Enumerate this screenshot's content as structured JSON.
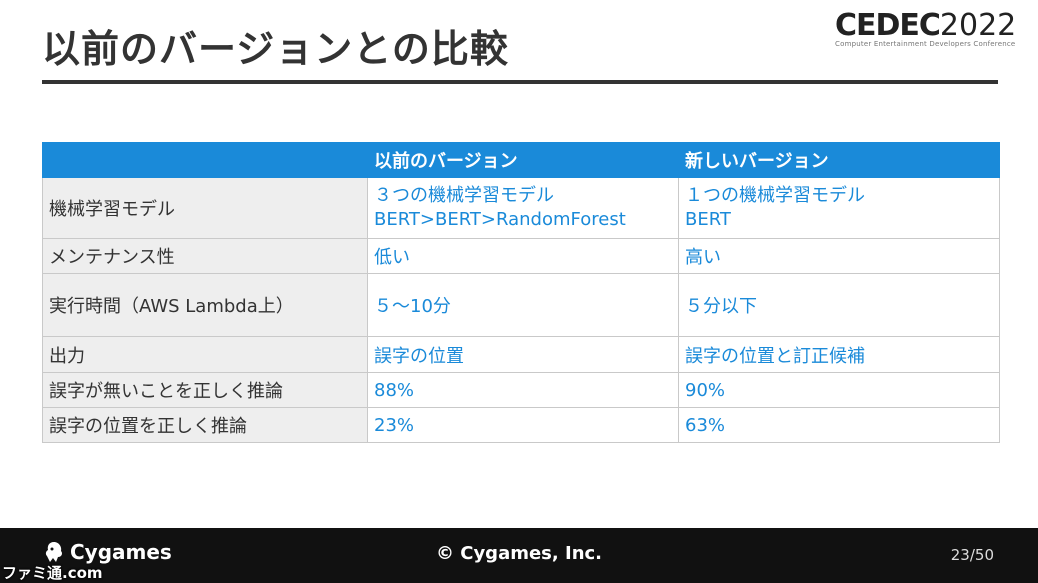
{
  "slide": {
    "title": "以前のバージョンとの比較",
    "logo": {
      "main": "CEDEC",
      "year": "2022",
      "sub": "Computer Entertainment Developers Conference"
    }
  },
  "table": {
    "headers": [
      "",
      "以前のバージョン",
      "新しいバージョン"
    ],
    "rows": [
      {
        "label": "機械学習モデル",
        "prev": [
          "３つの機械学習モデル",
          "BERT>BERT>RandomForest"
        ],
        "next": [
          "１つの機械学習モデル",
          "BERT"
        ]
      },
      {
        "label": "メンテナンス性",
        "prev": [
          "低い"
        ],
        "next": [
          "高い"
        ]
      },
      {
        "label": "実行時間（AWS Lambda上）",
        "prev": [
          "５～10分"
        ],
        "next": [
          "５分以下"
        ]
      },
      {
        "label": "出力",
        "prev": [
          "誤字の位置"
        ],
        "next": [
          "誤字の位置と訂正候補"
        ]
      },
      {
        "label": "誤字が無いことを正しく推論",
        "prev": [
          "88%"
        ],
        "next": [
          "90%"
        ]
      },
      {
        "label": "誤字の位置を正しく推論",
        "prev": [
          "23%"
        ],
        "next": [
          "63%"
        ]
      }
    ]
  },
  "footer": {
    "brand": "Cygames",
    "copyright": "© Cygames, Inc.",
    "page": "23/50",
    "watermark": "ファミ通.com"
  },
  "colors": {
    "accent": "#1a8ad9",
    "title": "#333333",
    "footer_bg": "#111111",
    "row_head_bg": "#eeeeee"
  }
}
